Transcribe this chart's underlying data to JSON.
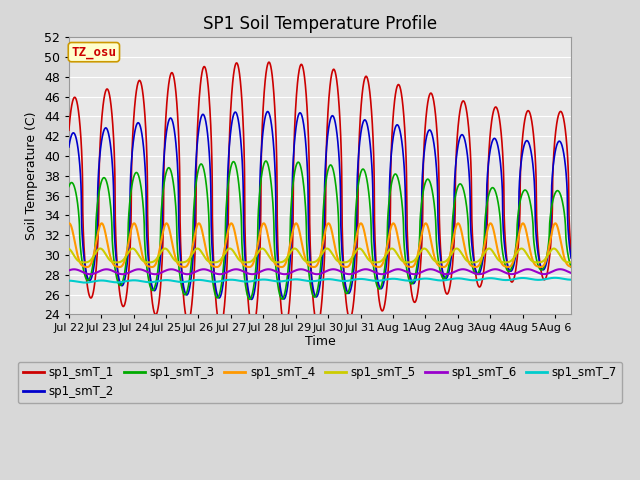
{
  "title": "SP1 Soil Temperature Profile",
  "xlabel": "Time",
  "ylabel": "Soil Temperature (C)",
  "ylim": [
    24,
    52
  ],
  "yticks": [
    24,
    26,
    28,
    30,
    32,
    34,
    36,
    38,
    40,
    42,
    44,
    46,
    48,
    50,
    52
  ],
  "bg_color": "#d8d8d8",
  "plot_bg_color": "#e8e8e8",
  "grid_color": "#ffffff",
  "tz_label": "TZ_osu",
  "tz_color": "#cc0000",
  "tz_bg": "#ffffcc",
  "tz_border": "#cc9900",
  "series_order": [
    "sp1_smT_1",
    "sp1_smT_2",
    "sp1_smT_3",
    "sp1_smT_4",
    "sp1_smT_5",
    "sp1_smT_6",
    "sp1_smT_7"
  ],
  "series": {
    "sp1_smT_1": {
      "color": "#cc0000",
      "lw": 1.2
    },
    "sp1_smT_2": {
      "color": "#0000cc",
      "lw": 1.2
    },
    "sp1_smT_3": {
      "color": "#00aa00",
      "lw": 1.2
    },
    "sp1_smT_4": {
      "color": "#ff9900",
      "lw": 1.5
    },
    "sp1_smT_5": {
      "color": "#cccc00",
      "lw": 1.5
    },
    "sp1_smT_6": {
      "color": "#9900cc",
      "lw": 1.5
    },
    "sp1_smT_7": {
      "color": "#00cccc",
      "lw": 1.5
    }
  },
  "legend_labels": [
    "sp1_smT_1",
    "sp1_smT_2",
    "sp1_smT_3",
    "sp1_smT_4",
    "sp1_smT_5",
    "sp1_smT_6",
    "sp1_smT_7"
  ],
  "xtick_labels": [
    "Jul 22",
    "Jul 23",
    "Jul 24",
    "Jul 25",
    "Jul 26",
    "Jul 27",
    "Jul 28",
    "Jul 29",
    "Jul 30",
    "Jul 31",
    "Aug 1",
    "Aug 2",
    "Aug 3",
    "Aug 4",
    "Aug 5",
    "Aug 6"
  ],
  "n_days": 15.5
}
